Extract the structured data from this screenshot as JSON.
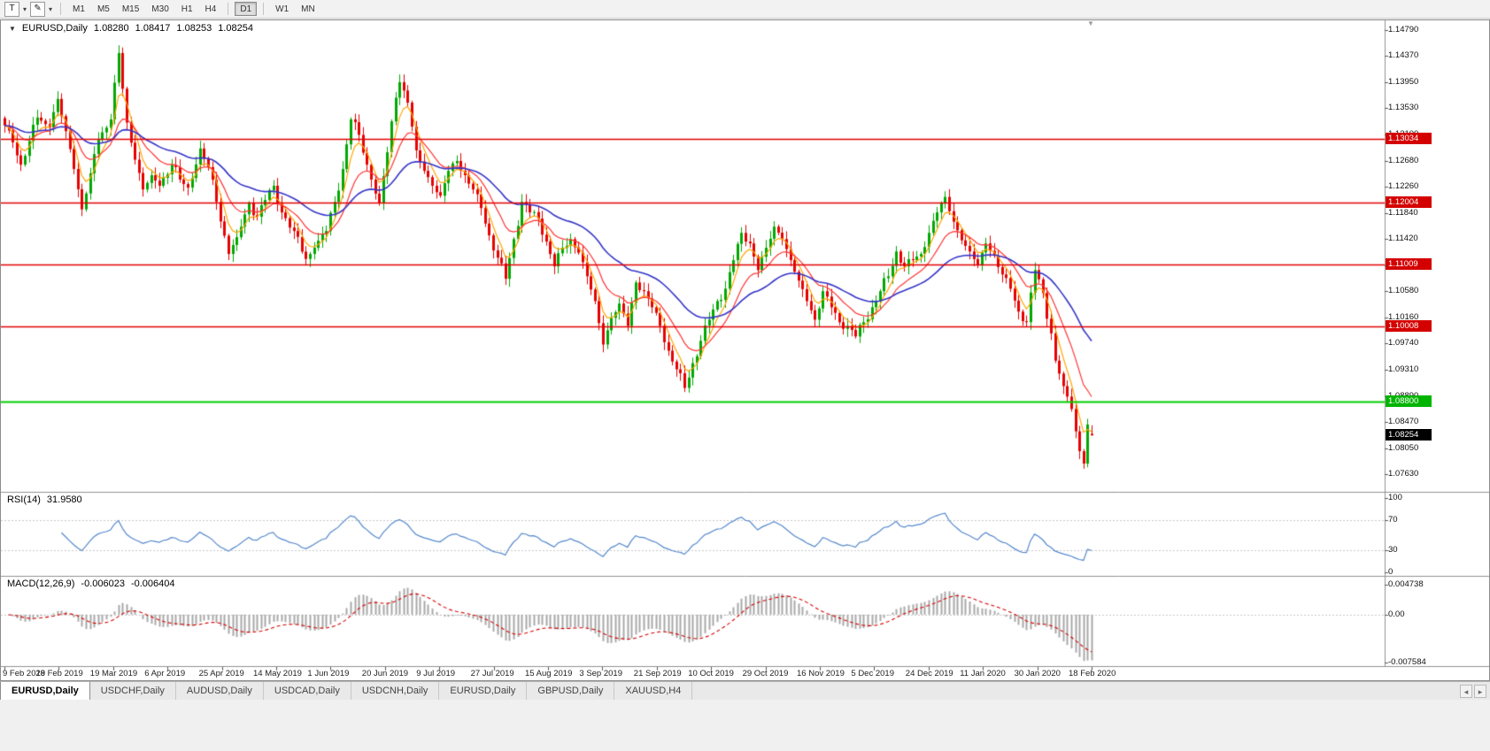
{
  "toolbar": {
    "cursor_tool_label": "T",
    "timeframes": [
      "M1",
      "M5",
      "M15",
      "M30",
      "H1",
      "H4",
      "D1",
      "W1",
      "MN"
    ],
    "active_timeframe": "D1"
  },
  "icons": {
    "collapse": "▼",
    "caret": "▾",
    "draw": "✎",
    "shift_marker": "▼",
    "tab_scroll_left": "◂",
    "tab_scroll_right": "▸"
  },
  "chart_header": {
    "symbol": "EURUSD,Daily",
    "open": "1.08280",
    "high": "1.08417",
    "low": "1.08253",
    "close": "1.08254"
  },
  "rsi_header": {
    "label": "RSI(14)",
    "value": "31.9580"
  },
  "macd_header": {
    "label": "MACD(12,26,9)",
    "main": "-0.006023",
    "signal": "-0.006404"
  },
  "tabs": [
    "EURUSD,Daily",
    "USDCHF,Daily",
    "AUDUSD,Daily",
    "USDCAD,Daily",
    "USDCNH,Daily",
    "EURUSD,Daily",
    "GBPUSD,Daily",
    "XAUUSD,H4"
  ],
  "active_tab_index": 0,
  "chart_data": {
    "type": "candlestick",
    "symbol": "EURUSD",
    "timeframe": "Daily",
    "ohlc_display": {
      "open": 1.0828,
      "high": 1.08417,
      "low": 1.08253,
      "close": 1.08254
    },
    "y_axis_labels": [
      "1.14790",
      "1.14370",
      "1.13950",
      "1.13530",
      "1.13100",
      "1.12680",
      "1.12260",
      "1.11840",
      "1.11420",
      "1.11000",
      "1.10580",
      "1.10160",
      "1.09740",
      "1.09310",
      "1.08890",
      "1.08470",
      "1.08050",
      "1.07630"
    ],
    "price_top": 1.1479,
    "price_bottom": 1.0763,
    "x_labels": [
      "9 Feb 2019",
      "28 Feb 2019",
      "19 Mar 2019",
      "6 Apr 2019",
      "25 Apr 2019",
      "14 May 2019",
      "1 Jun 2019",
      "20 Jun 2019",
      "9 Jul 2019",
      "27 Jul 2019",
      "15 Aug 2019",
      "3 Sep 2019",
      "21 Sep 2019",
      "10 Oct 2019",
      "29 Oct 2019",
      "16 Nov 2019",
      "5 Dec 2019",
      "24 Dec 2019",
      "11 Jan 2020",
      "30 Jan 2020",
      "18 Feb 2020"
    ],
    "hlines": [
      {
        "price": 1.13034,
        "label": "1.13034",
        "color": "#e00000",
        "badge": "#d40000"
      },
      {
        "price": 1.12004,
        "label": "1.12004",
        "color": "#e00000",
        "badge": "#d40000"
      },
      {
        "price": 1.11009,
        "label": "1.11009",
        "color": "#e00000",
        "badge": "#d40000"
      },
      {
        "price": 1.10008,
        "label": "1.10008",
        "color": "#e00000",
        "badge": "#d40000"
      },
      {
        "price": 1.088,
        "label": "1.08800",
        "color": "#00ce00",
        "badge": "#00b400"
      }
    ],
    "current_price": {
      "value": 1.08254,
      "label": "1.08254",
      "badge": "#000000"
    },
    "candles_total": 268,
    "colors": {
      "up": "#00a800",
      "down": "#e60000",
      "ma_fast": "#ffa500",
      "ma_mid": "#ff3333",
      "ma_slow": "#3434c8",
      "rsi": "#5588cc",
      "macd_hist": "#a9a9a9",
      "macd_signal": "#d40000",
      "axis": "#909090"
    },
    "moving_averages": [
      {
        "period": 5,
        "color_key": "ma_fast"
      },
      {
        "period": 13,
        "color_key": "ma_mid"
      },
      {
        "period": 34,
        "color_key": "ma_slow"
      }
    ],
    "close_anchors": [
      [
        0,
        1.1325
      ],
      [
        2,
        1.1298
      ],
      [
        4,
        1.1262
      ],
      [
        6,
        1.13
      ],
      [
        8,
        1.1338
      ],
      [
        11,
        1.1322
      ],
      [
        13,
        1.1368
      ],
      [
        15,
        1.1316
      ],
      [
        17,
        1.1255
      ],
      [
        19,
        1.119
      ],
      [
        21,
        1.1248
      ],
      [
        23,
        1.1302
      ],
      [
        26,
        1.1335
      ],
      [
        28,
        1.1442
      ],
      [
        30,
        1.133
      ],
      [
        32,
        1.127
      ],
      [
        34,
        1.1222
      ],
      [
        36,
        1.1245
      ],
      [
        38,
        1.1228
      ],
      [
        41,
        1.1262
      ],
      [
        43,
        1.1238
      ],
      [
        45,
        1.1225
      ],
      [
        48,
        1.1288
      ],
      [
        50,
        1.1258
      ],
      [
        52,
        1.1202
      ],
      [
        55,
        1.1118
      ],
      [
        57,
        1.1145
      ],
      [
        60,
        1.12
      ],
      [
        62,
        1.1178
      ],
      [
        64,
        1.1205
      ],
      [
        66,
        1.1228
      ],
      [
        68,
        1.1185
      ],
      [
        71,
        1.1155
      ],
      [
        74,
        1.111
      ],
      [
        76,
        1.1128
      ],
      [
        79,
        1.1155
      ],
      [
        81,
        1.1202
      ],
      [
        83,
        1.1255
      ],
      [
        85,
        1.1335
      ],
      [
        87,
        1.131
      ],
      [
        89,
        1.1262
      ],
      [
        92,
        1.12
      ],
      [
        94,
        1.1282
      ],
      [
        96,
        1.137
      ],
      [
        97,
        1.1395
      ],
      [
        99,
        1.1362
      ],
      [
        101,
        1.1285
      ],
      [
        103,
        1.1252
      ],
      [
        105,
        1.1228
      ],
      [
        107,
        1.1212
      ],
      [
        109,
        1.1252
      ],
      [
        111,
        1.1268
      ],
      [
        113,
        1.1245
      ],
      [
        115,
        1.1222
      ],
      [
        117,
        1.1192
      ],
      [
        119,
        1.1148
      ],
      [
        121,
        1.1112
      ],
      [
        123,
        1.1078
      ],
      [
        125,
        1.1142
      ],
      [
        127,
        1.1202
      ],
      [
        129,
        1.1185
      ],
      [
        131,
        1.1175
      ],
      [
        133,
        1.1138
      ],
      [
        135,
        1.1098
      ],
      [
        137,
        1.1128
      ],
      [
        139,
        1.1142
      ],
      [
        141,
        1.112
      ],
      [
        143,
        1.1082
      ],
      [
        145,
        1.1042
      ],
      [
        147,
        1.0972
      ],
      [
        149,
        1.1015
      ],
      [
        151,
        1.1038
      ],
      [
        153,
        1.1002
      ],
      [
        155,
        1.1072
      ],
      [
        157,
        1.1058
      ],
      [
        159,
        1.1032
      ],
      [
        161,
        1.1002
      ],
      [
        163,
        1.0962
      ],
      [
        165,
        1.0932
      ],
      [
        167,
        1.0902
      ],
      [
        169,
        1.0942
      ],
      [
        171,
        1.0978
      ],
      [
        173,
        1.1012
      ],
      [
        175,
        1.1042
      ],
      [
        177,
        1.1062
      ],
      [
        179,
        1.1108
      ],
      [
        181,
        1.1152
      ],
      [
        183,
        1.1135
      ],
      [
        185,
        1.1092
      ],
      [
        187,
        1.1128
      ],
      [
        189,
        1.1162
      ],
      [
        191,
        1.1142
      ],
      [
        193,
        1.1108
      ],
      [
        195,
        1.1075
      ],
      [
        197,
        1.1042
      ],
      [
        199,
        1.1012
      ],
      [
        201,
        1.1058
      ],
      [
        203,
        1.1032
      ],
      [
        205,
        1.1008
      ],
      [
        207,
        1.1002
      ],
      [
        209,
        1.0985
      ],
      [
        211,
        1.1008
      ],
      [
        213,
        1.1032
      ],
      [
        215,
        1.1058
      ],
      [
        217,
        1.1082
      ],
      [
        219,
        1.1122
      ],
      [
        221,
        1.1098
      ],
      [
        223,
        1.1108
      ],
      [
        225,
        1.1118
      ],
      [
        227,
        1.1152
      ],
      [
        229,
        1.1185
      ],
      [
        231,
        1.121
      ],
      [
        233,
        1.117
      ],
      [
        235,
        1.114
      ],
      [
        237,
        1.1122
      ],
      [
        239,
        1.11
      ],
      [
        241,
        1.1135
      ],
      [
        243,
        1.1115
      ],
      [
        245,
        1.1085
      ],
      [
        247,
        1.1062
      ],
      [
        249,
        1.1025
      ],
      [
        251,
        1.1008
      ],
      [
        253,
        1.1092
      ],
      [
        255,
        1.1055
      ],
      [
        257,
        1.099
      ],
      [
        258,
        1.0946
      ],
      [
        259,
        1.0925
      ],
      [
        260,
        1.0905
      ],
      [
        261,
        1.0888
      ],
      [
        262,
        1.0868
      ],
      [
        263,
        1.0832
      ],
      [
        264,
        1.08
      ],
      [
        265,
        1.078
      ],
      [
        266,
        1.0843
      ],
      [
        267,
        1.0826
      ]
    ],
    "indicators": {
      "rsi": {
        "label": "RSI(14)",
        "period": 14,
        "current": 31.958,
        "axis_labels": [
          "100",
          "70",
          "30",
          "0"
        ],
        "levels": [
          70,
          30
        ]
      },
      "macd": {
        "label": "MACD(12,26,9)",
        "fast": 12,
        "slow": 26,
        "signal_period": 9,
        "main": -0.006023,
        "signal": -0.006404,
        "axis_labels": [
          "0.004738",
          "0.00",
          "-0.007584"
        ],
        "max": 0.004738,
        "min": -0.007584
      }
    }
  }
}
